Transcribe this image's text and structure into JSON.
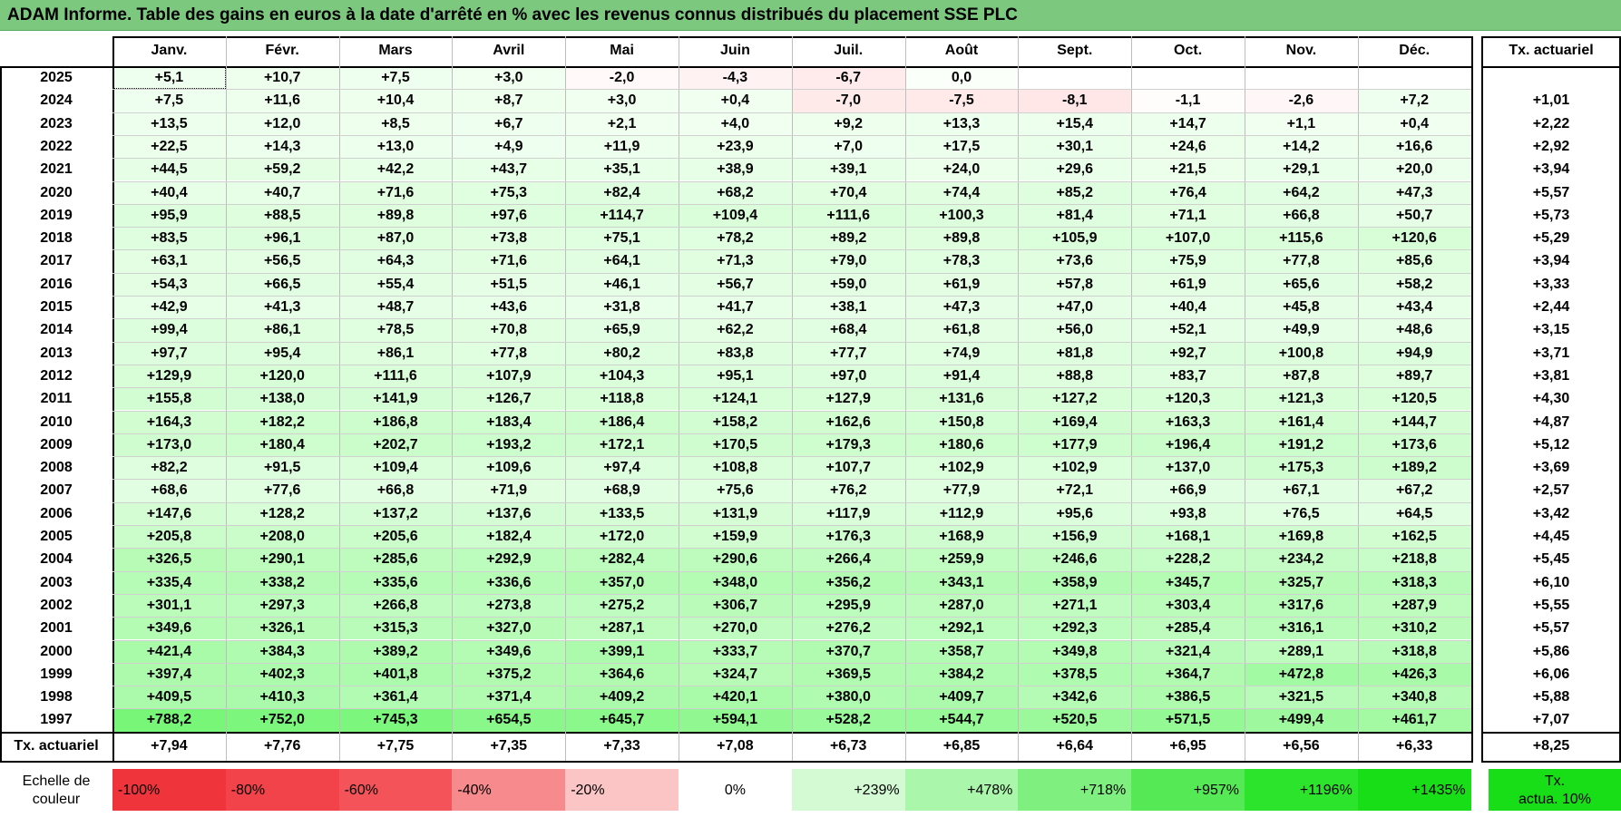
{
  "title": "ADAM Informe. Table des gains en euros à la date d'arrêté en % avec les revenus connus distribués du placement SSE PLC",
  "months": [
    "Janv.",
    "Févr.",
    "Mars",
    "Avril",
    "Mai",
    "Juin",
    "Juil.",
    "Août",
    "Sept.",
    "Oct.",
    "Nov.",
    "Déc."
  ],
  "tx_header": "Tx. actuariel",
  "rows": [
    {
      "year": "2025",
      "values": [
        "+5,1",
        "+10,7",
        "+7,5",
        "+3,0",
        "-2,0",
        "-4,3",
        "-6,7",
        "0,0",
        "",
        "",
        "",
        ""
      ],
      "tx": ""
    },
    {
      "year": "2024",
      "values": [
        "+7,5",
        "+11,6",
        "+10,4",
        "+8,7",
        "+3,0",
        "+0,4",
        "-7,0",
        "-7,5",
        "-8,1",
        "-1,1",
        "-2,6",
        "+7,2"
      ],
      "tx": "+1,01"
    },
    {
      "year": "2023",
      "values": [
        "+13,5",
        "+12,0",
        "+8,5",
        "+6,7",
        "+2,1",
        "+4,0",
        "+9,2",
        "+13,3",
        "+15,4",
        "+14,7",
        "+1,1",
        "+0,4"
      ],
      "tx": "+2,22"
    },
    {
      "year": "2022",
      "values": [
        "+22,5",
        "+14,3",
        "+13,0",
        "+4,9",
        "+11,9",
        "+23,9",
        "+7,0",
        "+17,5",
        "+30,1",
        "+24,6",
        "+14,2",
        "+16,6"
      ],
      "tx": "+2,92"
    },
    {
      "year": "2021",
      "values": [
        "+44,5",
        "+59,2",
        "+42,2",
        "+43,7",
        "+35,1",
        "+38,9",
        "+39,1",
        "+24,0",
        "+29,6",
        "+21,5",
        "+29,1",
        "+20,0"
      ],
      "tx": "+3,94"
    },
    {
      "year": "2020",
      "values": [
        "+40,4",
        "+40,7",
        "+71,6",
        "+75,3",
        "+82,4",
        "+68,2",
        "+70,4",
        "+74,4",
        "+85,2",
        "+76,4",
        "+64,2",
        "+47,3"
      ],
      "tx": "+5,57"
    },
    {
      "year": "2019",
      "values": [
        "+95,9",
        "+88,5",
        "+89,8",
        "+97,6",
        "+114,7",
        "+109,4",
        "+111,6",
        "+100,3",
        "+81,4",
        "+71,1",
        "+66,8",
        "+50,7"
      ],
      "tx": "+5,73"
    },
    {
      "year": "2018",
      "values": [
        "+83,5",
        "+96,1",
        "+87,0",
        "+73,8",
        "+75,1",
        "+78,2",
        "+89,2",
        "+89,8",
        "+105,9",
        "+107,0",
        "+115,6",
        "+120,6"
      ],
      "tx": "+5,29"
    },
    {
      "year": "2017",
      "values": [
        "+63,1",
        "+56,5",
        "+64,3",
        "+71,6",
        "+64,1",
        "+71,3",
        "+79,0",
        "+78,3",
        "+73,6",
        "+75,9",
        "+77,8",
        "+85,6"
      ],
      "tx": "+3,94"
    },
    {
      "year": "2016",
      "values": [
        "+54,3",
        "+66,5",
        "+55,4",
        "+51,5",
        "+46,1",
        "+56,7",
        "+59,0",
        "+61,9",
        "+57,8",
        "+61,9",
        "+65,6",
        "+58,2"
      ],
      "tx": "+3,33"
    },
    {
      "year": "2015",
      "values": [
        "+42,9",
        "+41,3",
        "+48,7",
        "+43,6",
        "+31,8",
        "+41,7",
        "+38,1",
        "+47,3",
        "+47,0",
        "+40,4",
        "+45,8",
        "+43,4"
      ],
      "tx": "+2,44"
    },
    {
      "year": "2014",
      "values": [
        "+99,4",
        "+86,1",
        "+78,5",
        "+70,8",
        "+65,9",
        "+62,2",
        "+68,4",
        "+61,8",
        "+56,0",
        "+52,1",
        "+49,9",
        "+48,6"
      ],
      "tx": "+3,15"
    },
    {
      "year": "2013",
      "values": [
        "+97,7",
        "+95,4",
        "+86,1",
        "+77,8",
        "+80,2",
        "+83,8",
        "+77,7",
        "+74,9",
        "+81,8",
        "+92,7",
        "+100,8",
        "+94,9"
      ],
      "tx": "+3,71"
    },
    {
      "year": "2012",
      "values": [
        "+129,9",
        "+120,0",
        "+111,6",
        "+107,9",
        "+104,3",
        "+95,1",
        "+97,0",
        "+91,4",
        "+88,8",
        "+83,7",
        "+87,8",
        "+89,7"
      ],
      "tx": "+3,81"
    },
    {
      "year": "2011",
      "values": [
        "+155,8",
        "+138,0",
        "+141,9",
        "+126,7",
        "+118,8",
        "+124,1",
        "+127,9",
        "+131,6",
        "+127,2",
        "+120,3",
        "+121,3",
        "+120,5"
      ],
      "tx": "+4,30"
    },
    {
      "year": "2010",
      "values": [
        "+164,3",
        "+182,2",
        "+186,8",
        "+183,4",
        "+186,4",
        "+158,2",
        "+162,6",
        "+150,8",
        "+169,4",
        "+163,3",
        "+161,4",
        "+144,7"
      ],
      "tx": "+4,87"
    },
    {
      "year": "2009",
      "values": [
        "+173,0",
        "+180,4",
        "+202,7",
        "+193,2",
        "+172,1",
        "+170,5",
        "+179,3",
        "+180,6",
        "+177,9",
        "+196,4",
        "+191,2",
        "+173,6"
      ],
      "tx": "+5,12"
    },
    {
      "year": "2008",
      "values": [
        "+82,2",
        "+91,5",
        "+109,4",
        "+109,6",
        "+97,4",
        "+108,8",
        "+107,7",
        "+102,9",
        "+102,9",
        "+137,0",
        "+175,3",
        "+189,2"
      ],
      "tx": "+3,69"
    },
    {
      "year": "2007",
      "values": [
        "+68,6",
        "+77,6",
        "+66,8",
        "+71,9",
        "+68,9",
        "+75,6",
        "+76,2",
        "+77,9",
        "+72,1",
        "+66,9",
        "+67,1",
        "+67,2"
      ],
      "tx": "+2,57"
    },
    {
      "year": "2006",
      "values": [
        "+147,6",
        "+128,2",
        "+137,2",
        "+137,6",
        "+133,5",
        "+131,9",
        "+117,9",
        "+112,9",
        "+95,6",
        "+93,8",
        "+76,5",
        "+64,5"
      ],
      "tx": "+3,42"
    },
    {
      "year": "2005",
      "values": [
        "+205,8",
        "+208,0",
        "+205,6",
        "+182,4",
        "+172,0",
        "+159,9",
        "+176,3",
        "+168,9",
        "+156,9",
        "+168,1",
        "+169,8",
        "+162,5"
      ],
      "tx": "+4,45"
    },
    {
      "year": "2004",
      "values": [
        "+326,5",
        "+290,1",
        "+285,6",
        "+292,9",
        "+282,4",
        "+290,6",
        "+266,4",
        "+259,9",
        "+246,6",
        "+228,2",
        "+234,2",
        "+218,8"
      ],
      "tx": "+5,45"
    },
    {
      "year": "2003",
      "values": [
        "+335,4",
        "+338,2",
        "+335,6",
        "+336,6",
        "+357,0",
        "+348,0",
        "+356,2",
        "+343,1",
        "+358,9",
        "+345,7",
        "+325,7",
        "+318,3"
      ],
      "tx": "+6,10"
    },
    {
      "year": "2002",
      "values": [
        "+301,1",
        "+297,3",
        "+266,8",
        "+273,8",
        "+275,2",
        "+306,7",
        "+295,9",
        "+287,0",
        "+271,1",
        "+303,4",
        "+317,6",
        "+287,9"
      ],
      "tx": "+5,55"
    },
    {
      "year": "2001",
      "values": [
        "+349,6",
        "+326,1",
        "+315,3",
        "+327,0",
        "+287,1",
        "+270,0",
        "+276,2",
        "+292,1",
        "+292,3",
        "+285,4",
        "+316,1",
        "+310,2"
      ],
      "tx": "+5,57"
    },
    {
      "year": "2000",
      "values": [
        "+421,4",
        "+384,3",
        "+389,2",
        "+349,6",
        "+399,1",
        "+333,7",
        "+370,7",
        "+358,7",
        "+349,8",
        "+321,4",
        "+289,1",
        "+318,8"
      ],
      "tx": "+5,86"
    },
    {
      "year": "1999",
      "values": [
        "+397,4",
        "+402,3",
        "+401,8",
        "+375,2",
        "+364,6",
        "+324,7",
        "+369,5",
        "+384,2",
        "+378,5",
        "+364,7",
        "+472,8",
        "+426,3"
      ],
      "tx": "+6,06"
    },
    {
      "year": "1998",
      "values": [
        "+409,5",
        "+410,3",
        "+361,4",
        "+371,4",
        "+409,2",
        "+420,1",
        "+380,0",
        "+409,7",
        "+342,6",
        "+386,5",
        "+321,5",
        "+340,8"
      ],
      "tx": "+5,88"
    },
    {
      "year": "1997",
      "values": [
        "+788,2",
        "+752,0",
        "+745,3",
        "+654,5",
        "+645,7",
        "+594,1",
        "+528,2",
        "+544,7",
        "+520,5",
        "+571,5",
        "+499,4",
        "+461,7"
      ],
      "tx": "+7,07"
    }
  ],
  "footer": {
    "label": "Tx. actuariel",
    "values": [
      "+7,94",
      "+7,76",
      "+7,75",
      "+7,35",
      "+7,33",
      "+7,08",
      "+6,73",
      "+6,85",
      "+6,64",
      "+6,95",
      "+6,56",
      "+6,33"
    ],
    "tx": "+8,25"
  },
  "scale": {
    "label_line1": "Echelle de",
    "label_line2": "couleur",
    "items": [
      {
        "text": "-100%",
        "color": "#f0343b"
      },
      {
        "text": "-80%",
        "color": "#f2434a"
      },
      {
        "text": "-60%",
        "color": "#f45459"
      },
      {
        "text": "-40%",
        "color": "#f78a8d"
      },
      {
        "text": "-20%",
        "color": "#fbc4c5"
      },
      {
        "text": "0%",
        "color": "#ffffff"
      },
      {
        "text": "+239%",
        "color": "#d4fad4"
      },
      {
        "text": "+478%",
        "color": "#aaf6aa"
      },
      {
        "text": "+718%",
        "color": "#7ff07f"
      },
      {
        "text": "+957%",
        "color": "#55ea55"
      },
      {
        "text": "+1196%",
        "color": "#2ce42c"
      },
      {
        "text": "+1435%",
        "color": "#18de18"
      }
    ],
    "tx_line1": "Tx.",
    "tx_line2": "actua. 10%",
    "tx_color": "#18de18"
  },
  "colors": {
    "title_bg": "#7dc87f",
    "negative": "#f0343b",
    "positive": "#18de18",
    "neutral": "#ffffff"
  }
}
